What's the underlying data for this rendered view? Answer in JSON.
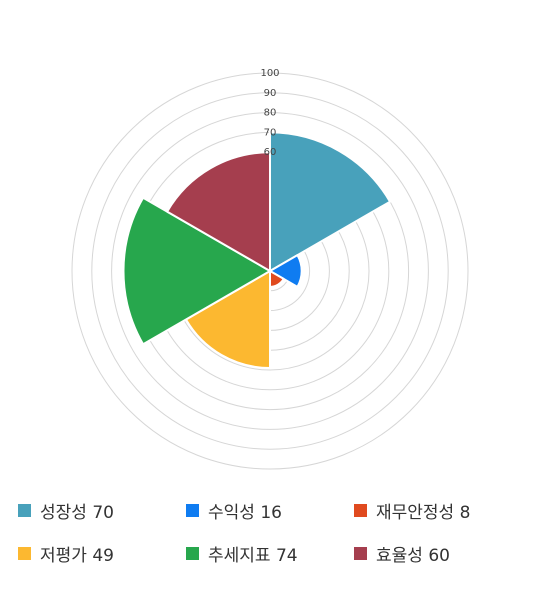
{
  "chart_data": {
    "type": "polar-area",
    "categories": [
      "성장성",
      "수익성",
      "재무안정성",
      "저평가",
      "추세지표",
      "효율성"
    ],
    "values": [
      70,
      16,
      8,
      49,
      74,
      60
    ],
    "colors": [
      "#48a1bb",
      "#0f7cf1",
      "#e04a1f",
      "#fcb830",
      "#27a74d",
      "#a53e4e"
    ],
    "radial_axis": {
      "min": 0,
      "max": 100,
      "ticks": [
        100,
        90,
        80,
        70,
        60
      ]
    },
    "grid": true,
    "legend_position": "bottom"
  },
  "legend": [
    {
      "label": "성장성 70"
    },
    {
      "label": "수익성 16"
    },
    {
      "label": "재무안정성 8"
    },
    {
      "label": "저평가 49"
    },
    {
      "label": "추세지표 74"
    },
    {
      "label": "효율성 60"
    }
  ]
}
